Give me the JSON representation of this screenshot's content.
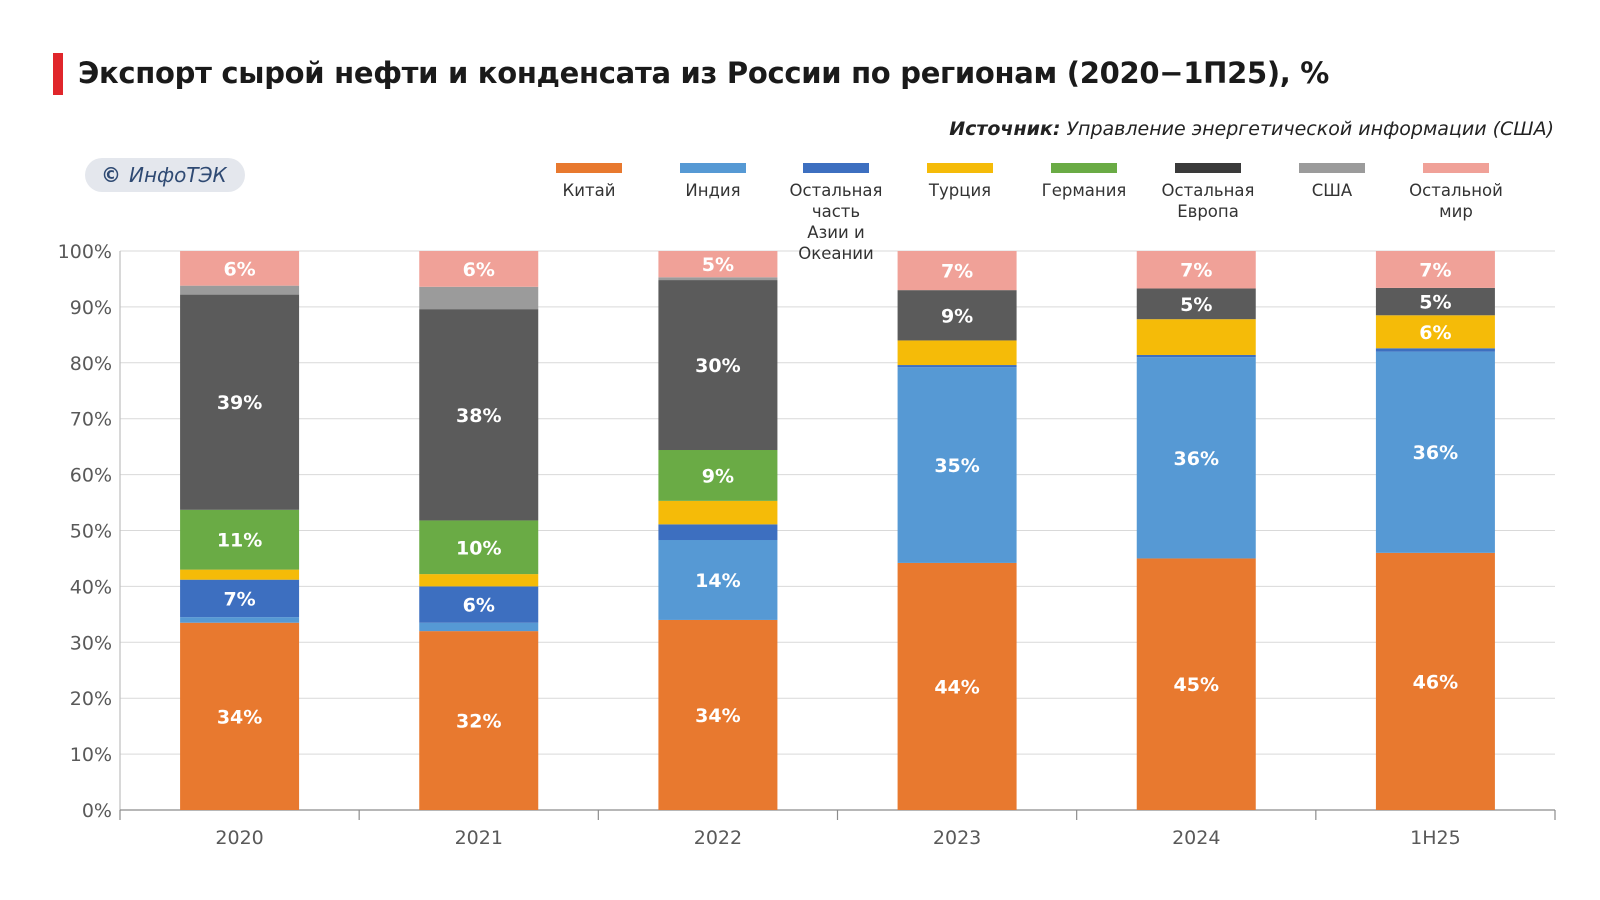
{
  "header": {
    "title": "Экспорт сырой нефти и конденсата из России по регионам (2020−1П25), %",
    "source_prefix": "Источник:",
    "source_text": "Управление энергетической информации (США)"
  },
  "logo": {
    "mark": "©",
    "text": "ИнфоТЭК"
  },
  "colors": {
    "accent": "#e0262b",
    "china": "#e8792f",
    "india": "#5699d4",
    "rest_asia": "#3d6fc0",
    "turkey": "#f5bb08",
    "germany": "#6aab45",
    "rest_europe": "#5b5b5b",
    "usa": "#9b9b9b",
    "rest_world": "#f0a198"
  },
  "chart_data": {
    "type": "bar",
    "stacked": true,
    "title": "Экспорт сырой нефти и конденсата из России по регионам (2020−1П25), %",
    "categories": [
      "2020",
      "2021",
      "2022",
      "2023",
      "2024",
      "1H25"
    ],
    "ylim": [
      0,
      100
    ],
    "yticks": [
      "0%",
      "10%",
      "20%",
      "30%",
      "40%",
      "50%",
      "60%",
      "70%",
      "80%",
      "90%",
      "100%"
    ],
    "grid": true,
    "legend_position": "top",
    "series": [
      {
        "name": "Китай",
        "label_lines": [
          "Китай"
        ],
        "color": "#e8792f",
        "values": [
          33.5,
          32,
          34,
          44.2,
          45,
          46
        ],
        "labels": [
          "34%",
          "32%",
          "34%",
          "44%",
          "45%",
          "46%"
        ]
      },
      {
        "name": "Индия",
        "label_lines": [
          "Индия"
        ],
        "color": "#5699d4",
        "values": [
          1,
          1.5,
          14.3,
          35,
          36,
          36
        ],
        "labels": [
          "",
          "",
          "14%",
          "35%",
          "36%",
          "36%"
        ]
      },
      {
        "name": "Остальная часть Азии и Океании",
        "label_lines": [
          "Остальная часть",
          "Азии и Океании"
        ],
        "color": "#3d6fc0",
        "values": [
          6.7,
          6.5,
          2.8,
          0.4,
          0.4,
          0.6
        ],
        "labels": [
          "7%",
          "6%",
          "",
          "",
          "",
          ""
        ]
      },
      {
        "name": "Турция",
        "label_lines": [
          "Турция"
        ],
        "color": "#f5bb08",
        "values": [
          1.8,
          2.2,
          4.2,
          4.4,
          6.4,
          5.9
        ],
        "labels": [
          "",
          "",
          "",
          "",
          "",
          "6%"
        ]
      },
      {
        "name": "Германия",
        "label_lines": [
          "Германия"
        ],
        "color": "#6aab45",
        "values": [
          10.7,
          9.6,
          9.1,
          0,
          0,
          0
        ],
        "labels": [
          "11%",
          "10%",
          "9%",
          "",
          "",
          ""
        ]
      },
      {
        "name": "Остальная Европа",
        "label_lines": [
          "Остальная",
          "Европа"
        ],
        "color": "#5b5b5b",
        "values": [
          38.5,
          37.8,
          30.4,
          9,
          5.5,
          4.9
        ],
        "labels": [
          "39%",
          "38%",
          "30%",
          "9%",
          "5%",
          "5%"
        ]
      },
      {
        "name": "США",
        "label_lines": [
          "США"
        ],
        "color": "#9b9b9b",
        "values": [
          1.6,
          4,
          0.5,
          0,
          0,
          0
        ],
        "labels": [
          "",
          "",
          "",
          "",
          "",
          ""
        ]
      },
      {
        "name": "Остальной мир",
        "label_lines": [
          "Остальной",
          "мир"
        ],
        "color": "#f0a198",
        "values": [
          6.2,
          6.4,
          4.7,
          7,
          6.7,
          6.6
        ],
        "labels": [
          "6%",
          "6%",
          "5%",
          "7%",
          "7%",
          "7%"
        ]
      }
    ]
  }
}
